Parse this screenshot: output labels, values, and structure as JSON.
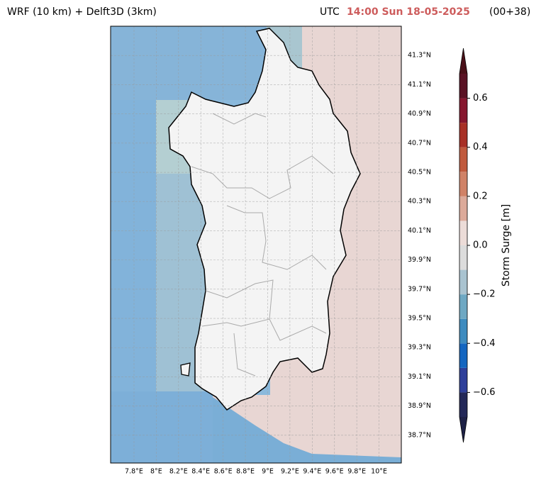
{
  "header": {
    "left_title": "WRF (10 km) + Delft3D (3km)",
    "utc": "UTC",
    "time": "14:00 Sun 18-05-2025",
    "lead": "(00+38)"
  },
  "map": {
    "lon_range": [
      7.59,
      10.2
    ],
    "lat_range": [
      38.51,
      41.5
    ],
    "lon_ticks": [
      {
        "value": 7.8,
        "label": "7.8°E"
      },
      {
        "value": 8,
        "label": "8°E"
      },
      {
        "value": 8.2,
        "label": "8.2°E"
      },
      {
        "value": 8.4,
        "label": "8.4°E"
      },
      {
        "value": 8.6,
        "label": "8.6°E"
      },
      {
        "value": 8.8,
        "label": "8.8°E"
      },
      {
        "value": 9,
        "label": "9°E"
      },
      {
        "value": 9.2,
        "label": "9.2°E"
      },
      {
        "value": 9.4,
        "label": "9.4°E"
      },
      {
        "value": 9.6,
        "label": "9.6°E"
      },
      {
        "value": 9.8,
        "label": "9.8°E"
      },
      {
        "value": 10,
        "label": "10°E"
      }
    ],
    "lat_ticks": [
      {
        "value": 41.3,
        "label": "41.3°N"
      },
      {
        "value": 41.1,
        "label": "41.1°N"
      },
      {
        "value": 40.9,
        "label": "40.9°N"
      },
      {
        "value": 40.7,
        "label": "40.7°N"
      },
      {
        "value": 40.5,
        "label": "40.5°N"
      },
      {
        "value": 40.3,
        "label": "40.3°N"
      },
      {
        "value": 40.1,
        "label": "40.1°N"
      },
      {
        "value": 39.9,
        "label": "39.9°N"
      },
      {
        "value": 39.7,
        "label": "39.7°N"
      },
      {
        "value": 39.5,
        "label": "39.5°N"
      },
      {
        "value": 39.3,
        "label": "39.3°N"
      },
      {
        "value": 39.1,
        "label": "39.1°N"
      },
      {
        "value": 38.9,
        "label": "38.9°N"
      },
      {
        "value": 38.7,
        "label": "38.7°N"
      }
    ]
  },
  "colorbar": {
    "label": "Storm Surge [m]",
    "lim": [
      -0.7,
      0.7
    ],
    "levels": [
      -0.7,
      -0.6,
      -0.5,
      -0.4,
      -0.3,
      -0.2,
      -0.1,
      0,
      0.1,
      0.2,
      0.3,
      0.4,
      0.5,
      0.6,
      0.7
    ],
    "colors": [
      "#232858",
      "#2e3f9a",
      "#1466c0",
      "#3d8bbf",
      "#6ea8c3",
      "#a9c3d0",
      "#dcdcdc",
      "#ecdcd8",
      "#dcaa9a",
      "#d08267",
      "#c05a3d",
      "#a83026",
      "#86162e",
      "#5a1224"
    ],
    "under_color": "#1e2146",
    "over_color": "#4a1018",
    "ticks": [
      {
        "value": -0.6,
        "label": "−0.6"
      },
      {
        "value": -0.4,
        "label": "−0.4"
      },
      {
        "value": -0.2,
        "label": "−0.2"
      },
      {
        "value": 0,
        "label": "0.0"
      },
      0.2,
      0.4,
      0.6
    ]
  }
}
